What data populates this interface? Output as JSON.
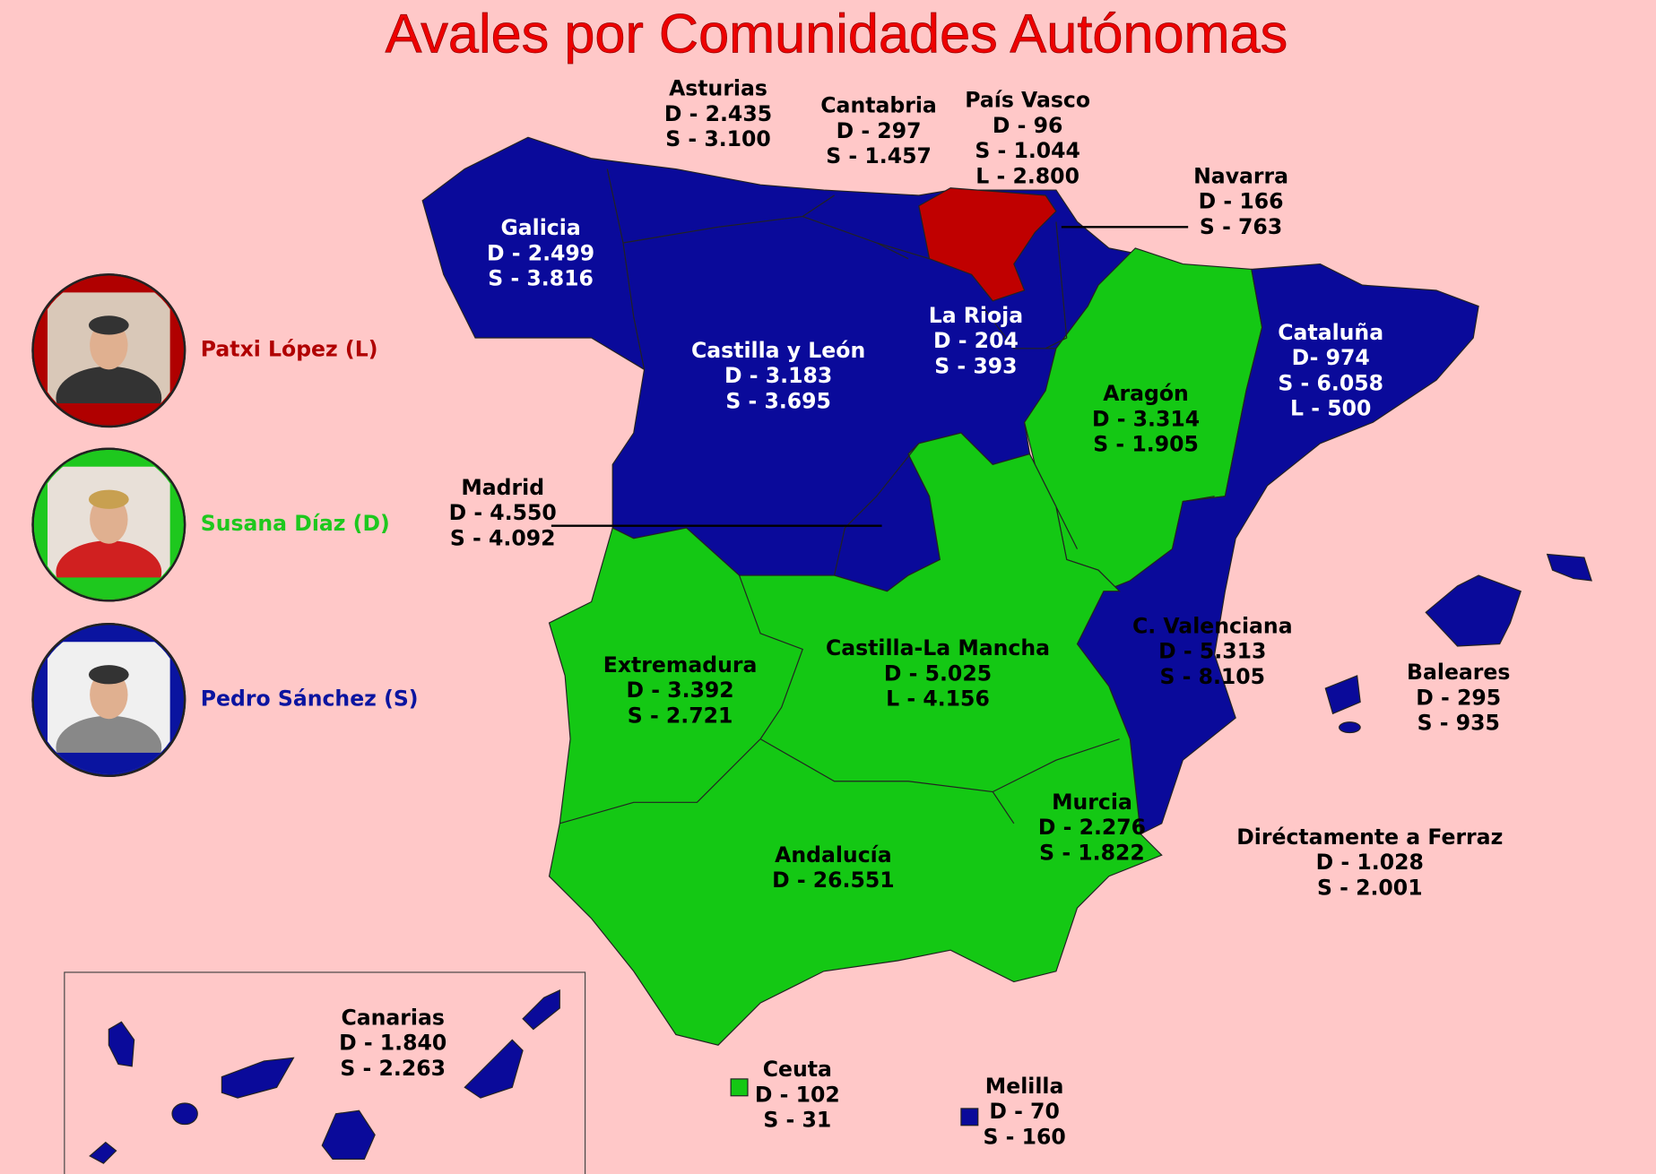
{
  "title": "Avales por Comunidades Autónomas",
  "candidates": [
    {
      "name": "Patxi López (L)",
      "color": "#b00000"
    },
    {
      "name": "Susana Díaz (D)",
      "color": "#1ec81e"
    },
    {
      "name": "Pedro Sánchez (S)",
      "color": "#0a14a0"
    }
  ],
  "regions": [
    {
      "name": "Asturias",
      "lines": [
        "D - 2.435",
        "S - 3.100"
      ]
    },
    {
      "name": "Cantabria",
      "lines": [
        "D - 297",
        "S - 1.457"
      ]
    },
    {
      "name": "País Vasco",
      "lines": [
        "D - 96",
        "S - 1.044",
        "L - 2.800"
      ]
    },
    {
      "name": "Navarra",
      "lines": [
        "D - 166",
        "S - 763"
      ]
    },
    {
      "name": "Galicia",
      "lines": [
        "D - 2.499",
        "S - 3.816"
      ]
    },
    {
      "name": "La Rioja",
      "lines": [
        "D - 204",
        "S - 393"
      ]
    },
    {
      "name": "Castilla y León",
      "lines": [
        "D - 3.183",
        "S - 3.695"
      ]
    },
    {
      "name": "Cataluña",
      "lines": [
        "D- 974",
        "S - 6.058",
        "L - 500"
      ]
    },
    {
      "name": "Aragón",
      "lines": [
        "D - 3.314",
        "S - 1.905"
      ]
    },
    {
      "name": "Madrid",
      "lines": [
        "D - 4.550",
        "S - 4.092"
      ]
    },
    {
      "name": "C. Valenciana",
      "lines": [
        "D - 5.313",
        "S - 8.105"
      ]
    },
    {
      "name": "Castilla-La Mancha",
      "lines": [
        "D - 5.025",
        "L - 4.156"
      ]
    },
    {
      "name": "Extremadura",
      "lines": [
        "D - 3.392",
        "S - 2.721"
      ]
    },
    {
      "name": "Baleares",
      "lines": [
        "D - 295",
        "S - 935"
      ]
    },
    {
      "name": "Murcia",
      "lines": [
        "D - 2.276",
        "S - 1.822"
      ]
    },
    {
      "name": "Andalucía",
      "lines": [
        "D - 26.551"
      ]
    },
    {
      "name": "Diréctamente a Ferraz",
      "lines": [
        "D - 1.028",
        "S - 2.001"
      ]
    },
    {
      "name": "Canarias",
      "lines": [
        "D - 1.840",
        "S - 2.263"
      ]
    },
    {
      "name": "Ceuta",
      "lines": [
        "D - 102",
        "S - 31"
      ]
    },
    {
      "name": "Melilla",
      "lines": [
        "D - 70",
        "S - 160"
      ]
    }
  ]
}
